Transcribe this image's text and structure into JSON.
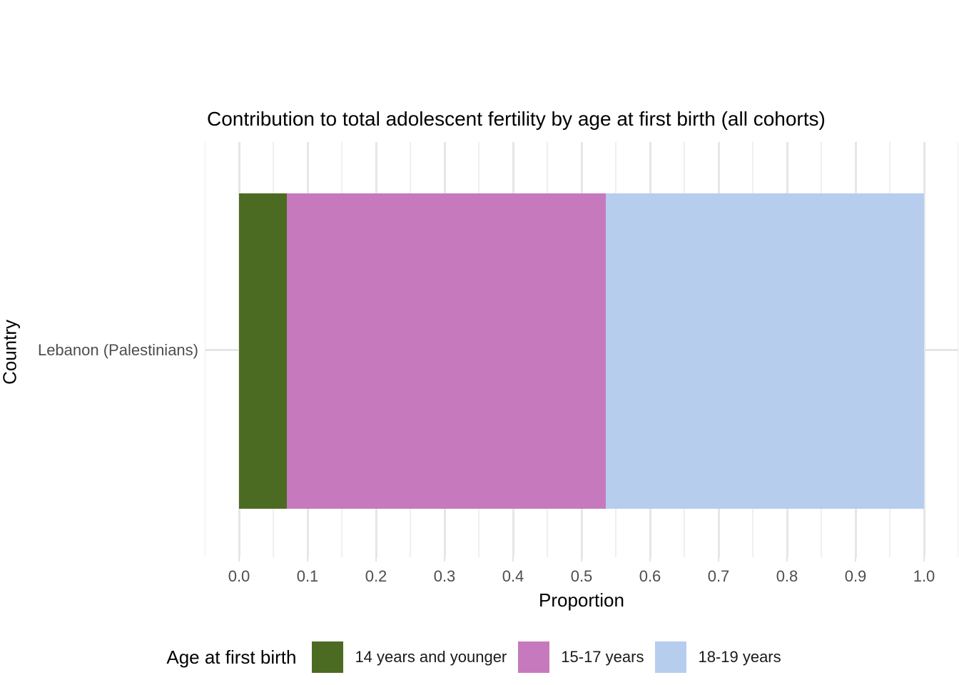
{
  "chart_data": {
    "type": "bar",
    "orientation": "horizontal",
    "stacked": true,
    "title": "Contribution to total adolescent fertility by age at first birth (all cohorts)",
    "xlabel": "Proportion",
    "ylabel": "Country",
    "categories": [
      "Lebanon (Palestinians)"
    ],
    "series": [
      {
        "name": "14 years and younger",
        "color": "#4C6B22",
        "values": [
          0.07
        ]
      },
      {
        "name": "15-17 years",
        "color": "#C779BD",
        "values": [
          0.465
        ]
      },
      {
        "name": "18-19 years",
        "color": "#B6CDEE",
        "values": [
          0.465
        ]
      }
    ],
    "xlim": [
      -0.05,
      1.05
    ],
    "x_ticks": [
      "0.0",
      "0.1",
      "0.2",
      "0.3",
      "0.4",
      "0.5",
      "0.6",
      "0.7",
      "0.8",
      "0.9",
      "1.0"
    ],
    "grid": "major-and-minor-vertical, major-horizontal",
    "legend_position": "bottom",
    "gridline_color": "#e6e6e6",
    "background_color": "#ffffff",
    "axis_text_color": "#4d4d4d"
  },
  "legend": {
    "title": "Age at first birth"
  }
}
